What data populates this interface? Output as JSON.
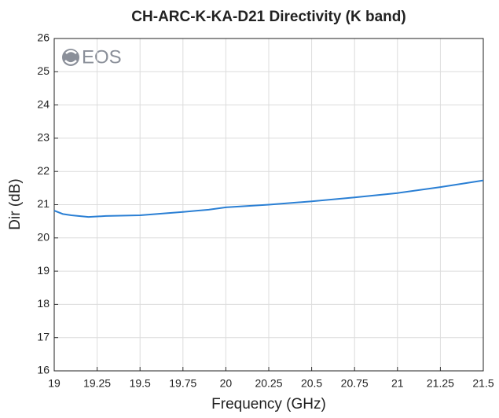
{
  "chart_data": {
    "type": "line",
    "title": "CH-ARC-K-KA-D21 Directivity (K band)",
    "xlabel": "Frequency (GHz)",
    "ylabel": "Dir (dB)",
    "logo": "EOS",
    "x": [
      19,
      19.05,
      19.1,
      19.2,
      19.3,
      19.5,
      19.75,
      19.9,
      20,
      20.25,
      20.5,
      20.75,
      21,
      21.25,
      21.5
    ],
    "series": [
      {
        "name": "Directivity",
        "color": "#2a7fd4",
        "values": [
          20.82,
          20.72,
          20.68,
          20.63,
          20.66,
          20.68,
          20.78,
          20.85,
          20.92,
          21.0,
          21.1,
          21.22,
          21.35,
          21.53,
          21.73
        ]
      }
    ],
    "xlim": [
      19,
      21.5
    ],
    "xticks": [
      19,
      19.25,
      19.5,
      19.75,
      20,
      20.25,
      20.5,
      20.75,
      21,
      21.25,
      21.5
    ],
    "ylim": [
      16,
      26
    ],
    "yticks": [
      16,
      17,
      18,
      19,
      20,
      21,
      22,
      23,
      24,
      25,
      26
    ],
    "grid": true
  }
}
